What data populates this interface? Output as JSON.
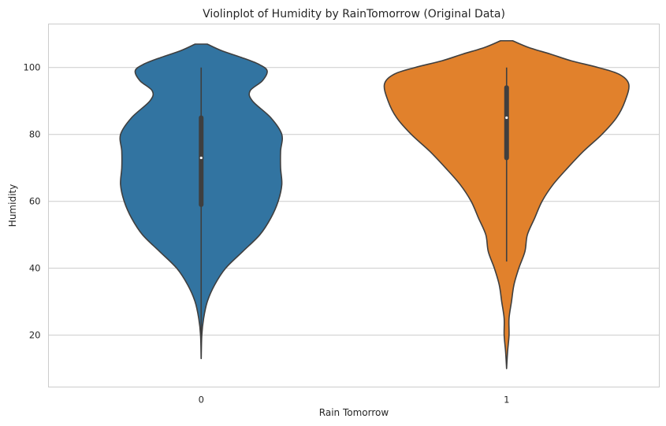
{
  "chart_data": {
    "type": "violin",
    "title": "Violinplot of Humidity by RainTomorrow (Original Data)",
    "xlabel": "Rain Tomorrow",
    "ylabel": "Humidity",
    "ylim": [
      4.5,
      113
    ],
    "yticks": [
      20,
      40,
      60,
      80,
      100
    ],
    "grid": true,
    "categories": [
      "0",
      "1"
    ],
    "series": [
      {
        "name": "0",
        "color": "#3274a1",
        "median": 73,
        "q1": 59,
        "q3": 85,
        "whisker_low": 13,
        "whisker_high": 100,
        "density_profile": [
          [
            13,
            0.0
          ],
          [
            20,
            0.005
          ],
          [
            25,
            0.02
          ],
          [
            30,
            0.05
          ],
          [
            35,
            0.11
          ],
          [
            40,
            0.2
          ],
          [
            45,
            0.34
          ],
          [
            50,
            0.48
          ],
          [
            55,
            0.57
          ],
          [
            60,
            0.63
          ],
          [
            65,
            0.66
          ],
          [
            70,
            0.65
          ],
          [
            75,
            0.65
          ],
          [
            80,
            0.66
          ],
          [
            85,
            0.57
          ],
          [
            90,
            0.42
          ],
          [
            93,
            0.4
          ],
          [
            96,
            0.5
          ],
          [
            99,
            0.54
          ],
          [
            101,
            0.47
          ],
          [
            103,
            0.33
          ],
          [
            105,
            0.17
          ],
          [
            107,
            0.05
          ]
        ]
      },
      {
        "name": "1",
        "color": "#e1812c",
        "median": 85,
        "q1": 73,
        "q3": 94,
        "whisker_low": 42,
        "whisker_high": 100,
        "density_profile": [
          [
            10,
            0.0
          ],
          [
            15,
            0.008
          ],
          [
            20,
            0.02
          ],
          [
            25,
            0.02
          ],
          [
            30,
            0.04
          ],
          [
            35,
            0.06
          ],
          [
            40,
            0.1
          ],
          [
            45,
            0.15
          ],
          [
            50,
            0.17
          ],
          [
            55,
            0.23
          ],
          [
            60,
            0.29
          ],
          [
            65,
            0.38
          ],
          [
            70,
            0.5
          ],
          [
            75,
            0.63
          ],
          [
            80,
            0.78
          ],
          [
            85,
            0.9
          ],
          [
            90,
            0.97
          ],
          [
            95,
            1.0
          ],
          [
            98,
            0.92
          ],
          [
            100,
            0.75
          ],
          [
            102,
            0.53
          ],
          [
            104,
            0.36
          ],
          [
            106,
            0.18
          ],
          [
            108,
            0.05
          ]
        ]
      }
    ]
  }
}
